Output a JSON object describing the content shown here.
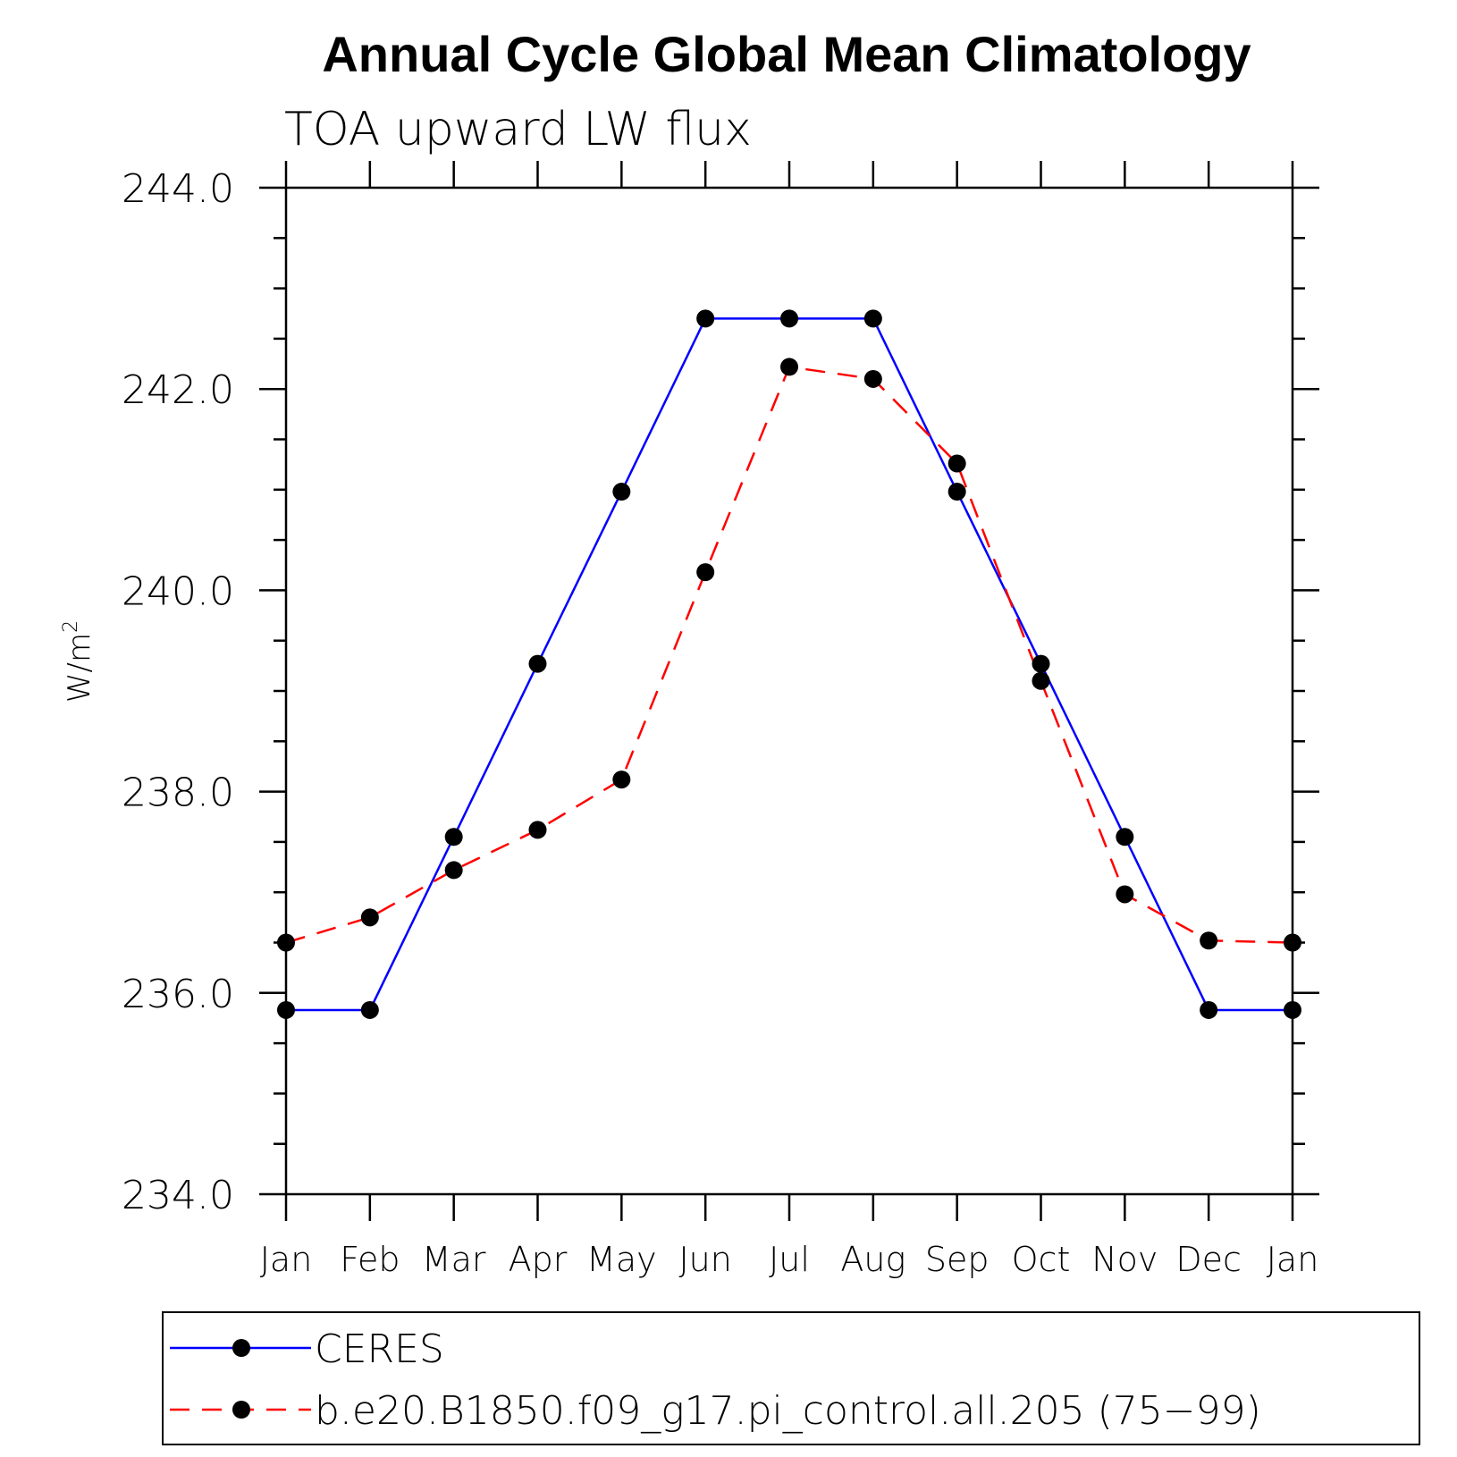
{
  "chart_data": {
    "type": "line",
    "title": "Annual Cycle Global Mean Climatology",
    "subtitle": "TOA upward LW flux",
    "ylabel_base": "W/m",
    "ylabel_sup": "2",
    "xlabel": "",
    "ylim": [
      234.0,
      244.0
    ],
    "yticks": [
      234.0,
      236.0,
      238.0,
      240.0,
      242.0,
      244.0
    ],
    "ytick_labels": [
      "234.0",
      "236.0",
      "238.0",
      "240.0",
      "242.0",
      "244.0"
    ],
    "y_minor_step": 0.5,
    "categories": [
      "Jan",
      "Feb",
      "Mar",
      "Apr",
      "May",
      "Jun",
      "Jul",
      "Aug",
      "Sep",
      "Oct",
      "Nov",
      "Dec",
      "Jan"
    ],
    "grid": false,
    "legend_position": "bottom",
    "series": [
      {
        "name": "CERES",
        "color": "#0000ff",
        "dash": "solid",
        "marker": "filled-circle",
        "values": [
          235.83,
          235.83,
          237.55,
          239.27,
          240.98,
          242.7,
          242.7,
          242.7,
          240.98,
          239.27,
          237.55,
          235.83,
          235.83
        ]
      },
      {
        "name": "b.e20.B1850.f09_g17.pi_control.all.205 (75−99)",
        "color": "#ff0000",
        "dash": "dashed",
        "marker": "filled-circle",
        "values": [
          236.5,
          236.75,
          237.22,
          237.62,
          238.12,
          240.18,
          242.22,
          242.1,
          241.26,
          239.1,
          236.98,
          236.52,
          236.5
        ]
      }
    ]
  }
}
